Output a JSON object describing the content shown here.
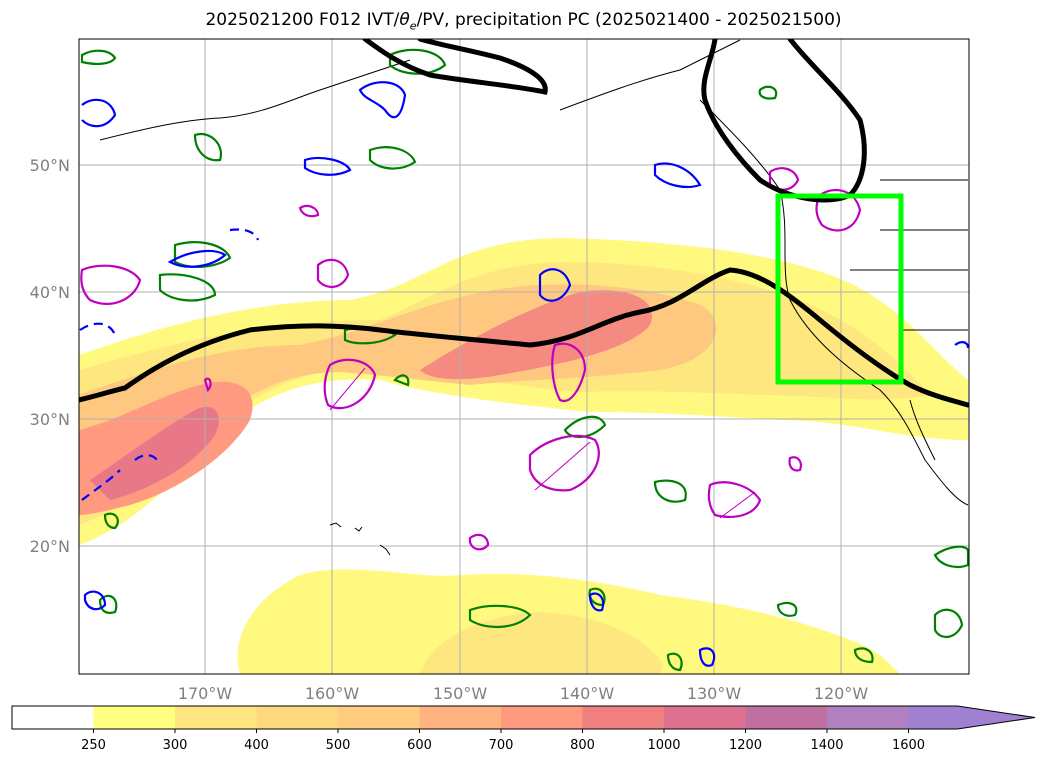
{
  "title": {
    "run": "2025021200 F012 IVT/",
    "theta_symbol": "θ",
    "theta_sub": "e",
    "rest": "/PV, precipitation PC (2025021400 - 2025021500)"
  },
  "map": {
    "lat_labels": [
      "50°N",
      "40°N",
      "30°N",
      "20°N"
    ],
    "lon_labels": [
      "170°W",
      "160°W",
      "150°W",
      "140°W",
      "130°W",
      "120°W"
    ],
    "highlight_box_color": "#00ff00",
    "jet_line_color": "#000000",
    "pv_contour_colors": {
      "blue": "#0000ff",
      "green": "#008000",
      "magenta": "#c000c0"
    }
  },
  "colorbar": {
    "tick_labels": [
      "250",
      "300",
      "400",
      "500",
      "600",
      "700",
      "800",
      "1000",
      "1200",
      "1400",
      "1600"
    ],
    "colors": [
      "#ffffff",
      "#ffff80",
      "#ffe680",
      "#ffd980",
      "#ffcc80",
      "#ffb380",
      "#ff9980",
      "#f08080",
      "#e07090",
      "#c070a0",
      "#b080c0",
      "#a080d0"
    ]
  }
}
